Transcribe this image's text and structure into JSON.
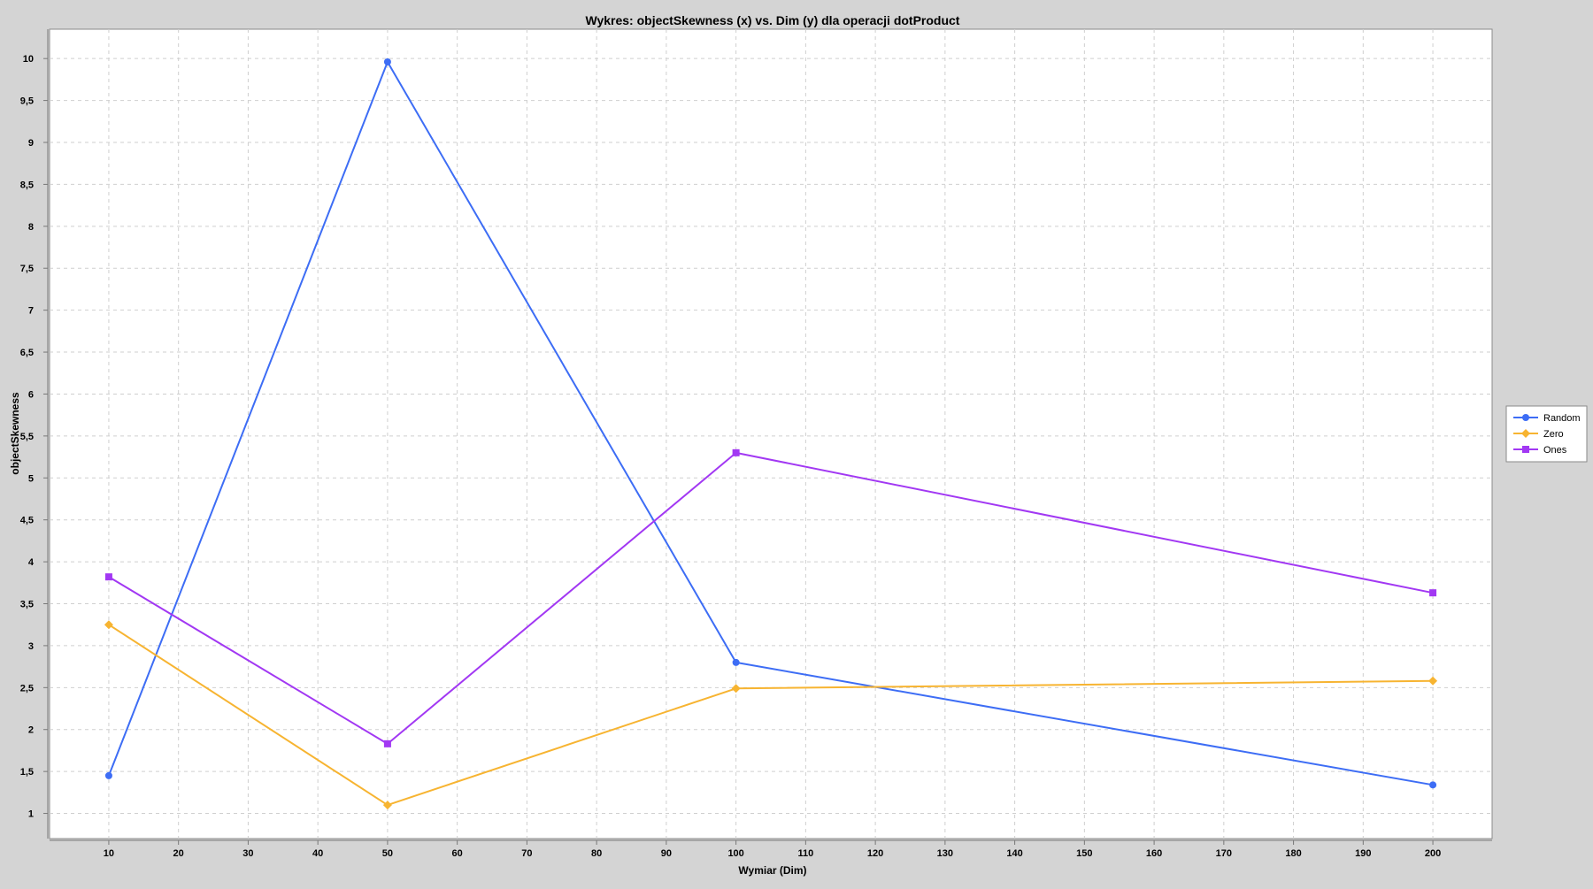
{
  "chart_data": {
    "type": "line",
    "title": "Wykres: objectSkewness (x) vs. Dim (y) dla operacji dotProduct",
    "xlabel": "Wymiar (Dim)",
    "ylabel": "objectSkewness",
    "xlim": [
      1.5,
      208.5
    ],
    "ylim": [
      0.7,
      10.35
    ],
    "x_ticks": [
      10,
      20,
      30,
      40,
      50,
      60,
      70,
      80,
      90,
      100,
      110,
      120,
      130,
      140,
      150,
      160,
      170,
      180,
      190,
      200
    ],
    "y_ticks": [
      {
        "value": 1,
        "label": "1"
      },
      {
        "value": 1.5,
        "label": "1,5"
      },
      {
        "value": 2,
        "label": "2"
      },
      {
        "value": 2.5,
        "label": "2,5"
      },
      {
        "value": 3,
        "label": "3"
      },
      {
        "value": 3.5,
        "label": "3,5"
      },
      {
        "value": 4,
        "label": "4"
      },
      {
        "value": 4.5,
        "label": "4,5"
      },
      {
        "value": 5,
        "label": "5"
      },
      {
        "value": 5.5,
        "label": "5,5"
      },
      {
        "value": 6,
        "label": "6"
      },
      {
        "value": 6.5,
        "label": "6,5"
      },
      {
        "value": 7,
        "label": "7"
      },
      {
        "value": 7.5,
        "label": "7,5"
      },
      {
        "value": 8,
        "label": "8"
      },
      {
        "value": 8.5,
        "label": "8,5"
      },
      {
        "value": 9,
        "label": "9"
      },
      {
        "value": 9.5,
        "label": "9,5"
      },
      {
        "value": 10,
        "label": "10"
      }
    ],
    "grid": true,
    "legend_position": "right",
    "x": [
      10,
      50,
      100,
      200
    ],
    "series": [
      {
        "name": "Random",
        "color": "#3d6df5",
        "marker": "circle",
        "values": [
          1.45,
          9.96,
          2.8,
          1.34
        ]
      },
      {
        "name": "Zero",
        "color": "#f7b431",
        "marker": "diamond",
        "values": [
          3.25,
          1.1,
          2.49,
          2.58
        ]
      },
      {
        "name": "Ones",
        "color": "#a238f3",
        "marker": "square",
        "values": [
          3.82,
          1.83,
          5.3,
          3.63
        ]
      }
    ]
  },
  "colors": {
    "background": "#d4d4d4",
    "plot_background": "#ffffff",
    "gridline": "#cfcfcf"
  }
}
